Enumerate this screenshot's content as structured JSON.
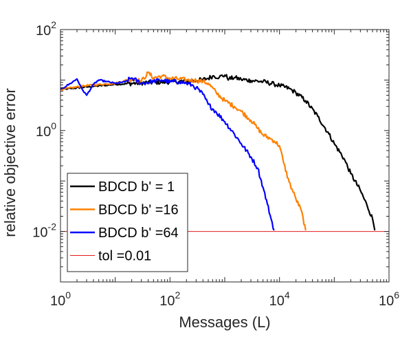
{
  "chart_data": {
    "type": "line",
    "title": "",
    "xlabel": "Messages (L)",
    "ylabel": "relative objective error",
    "xscale": "log",
    "yscale": "log",
    "xlim": [
      1,
      1000000
    ],
    "ylim": [
      0.001,
      100
    ],
    "x_ticks": [
      {
        "base": "10",
        "exp": "0",
        "value": 1
      },
      {
        "base": "10",
        "exp": "2",
        "value": 100
      },
      {
        "base": "10",
        "exp": "4",
        "value": 10000
      },
      {
        "base": "10",
        "exp": "6",
        "value": 1000000
      }
    ],
    "y_ticks": [
      {
        "base": "10",
        "exp": "-2",
        "value": 0.01
      },
      {
        "base": "10",
        "exp": "0",
        "value": 1
      },
      {
        "base": "10",
        "exp": "2",
        "value": 100
      }
    ],
    "grid": false,
    "legend_position": "bottom-left",
    "series": [
      {
        "name": "BDCD b' = 1",
        "color": "#000000",
        "x": [
          1,
          3,
          10,
          30,
          100,
          200,
          300,
          400,
          500,
          600,
          800,
          1000,
          1200,
          1500,
          2000,
          3000,
          5000,
          8000,
          10000,
          15000,
          20000,
          30000,
          50000,
          80000,
          100000,
          150000,
          200000,
          300000,
          400000,
          500000,
          550000
        ],
        "y": [
          6.5,
          7.3,
          8.2,
          8.8,
          9.2,
          9.5,
          9.8,
          10.2,
          10.8,
          12,
          11.5,
          12.5,
          10.5,
          11.2,
          10.3,
          9.8,
          9.3,
          8.3,
          7.8,
          6.8,
          5.6,
          3.9,
          1.9,
          0.85,
          0.55,
          0.28,
          0.14,
          0.065,
          0.032,
          0.018,
          0.0105
        ]
      },
      {
        "name": "BDCD b' =16",
        "color": "#ff8000",
        "x": [
          1,
          3,
          10,
          20,
          30,
          40,
          50,
          70,
          100,
          150,
          200,
          300,
          400,
          500,
          700,
          1000,
          1500,
          2000,
          3000,
          4000,
          5000,
          7000,
          8000,
          10000,
          12000,
          15000,
          20000,
          25000,
          30000
        ],
        "y": [
          6.5,
          7.8,
          8.6,
          10.5,
          9.5,
          14,
          11,
          12,
          10.8,
          10.5,
          10,
          9.8,
          9.4,
          8.6,
          5.6,
          3.9,
          3,
          2.4,
          1.6,
          1.1,
          0.82,
          0.68,
          0.62,
          0.5,
          0.22,
          0.095,
          0.044,
          0.026,
          0.0105
        ]
      },
      {
        "name": "BDCD b' =64",
        "color": "#0000ff",
        "x": [
          1,
          1.5,
          2,
          2.5,
          3,
          4,
          5,
          7,
          10,
          15,
          20,
          30,
          50,
          70,
          100,
          150,
          200,
          250,
          300,
          400,
          500,
          700,
          1000,
          1500,
          2000,
          3000,
          4000,
          5000,
          6000,
          7000,
          8000
        ],
        "y": [
          6.5,
          8.5,
          10.5,
          6.5,
          5,
          8.2,
          10,
          9.3,
          8.6,
          9.2,
          11,
          8.6,
          9.4,
          10,
          9.2,
          9.3,
          8.6,
          8,
          7,
          5.2,
          3.3,
          2.3,
          1.5,
          0.85,
          0.55,
          0.3,
          0.18,
          0.075,
          0.035,
          0.018,
          0.0105
        ]
      },
      {
        "name": "tol =0.01",
        "color": "#e41a1c",
        "x": [
          1,
          1000000
        ],
        "y": [
          0.01,
          0.01
        ]
      }
    ]
  }
}
